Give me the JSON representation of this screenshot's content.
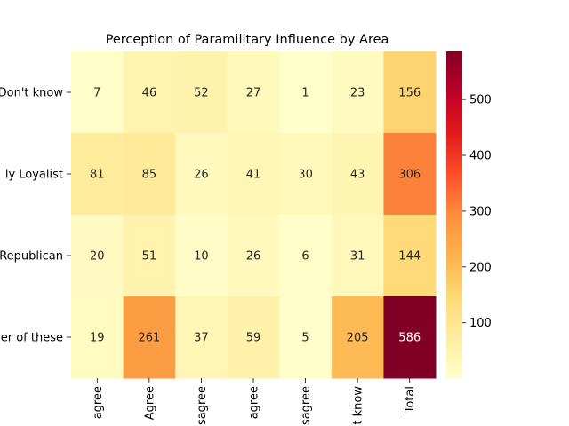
{
  "chart_data": {
    "type": "heatmap",
    "title": "Perception of Paramilitary Influence by Area",
    "xlabel": "",
    "ylabel": "",
    "rows": [
      "Don't know",
      "Mainly Loyalist",
      "Mainly Republican",
      "Neither of these"
    ],
    "row_labels_visible": [
      "Don't know",
      "ly Loyalist",
      "Republican",
      "er of these"
    ],
    "columns": [
      "Strongly agree",
      "Agree",
      "Neither agree nor disagree",
      "Disagree",
      "Strongly disagree",
      "Don't know",
      "Total"
    ],
    "column_labels_visible": [
      "agree",
      "Agree",
      "sagree",
      "agree",
      "sagree",
      "t know",
      "Total"
    ],
    "values": [
      [
        7,
        46,
        52,
        27,
        1,
        23,
        156
      ],
      [
        81,
        85,
        26,
        41,
        30,
        43,
        306
      ],
      [
        20,
        51,
        10,
        26,
        6,
        31,
        144
      ],
      [
        19,
        261,
        37,
        59,
        5,
        205,
        586
      ]
    ],
    "colormap": "YlOrRd",
    "vmin": 1,
    "vmax": 586,
    "colorbar_ticks": [
      100,
      200,
      300,
      400,
      500
    ],
    "annotations": true
  }
}
